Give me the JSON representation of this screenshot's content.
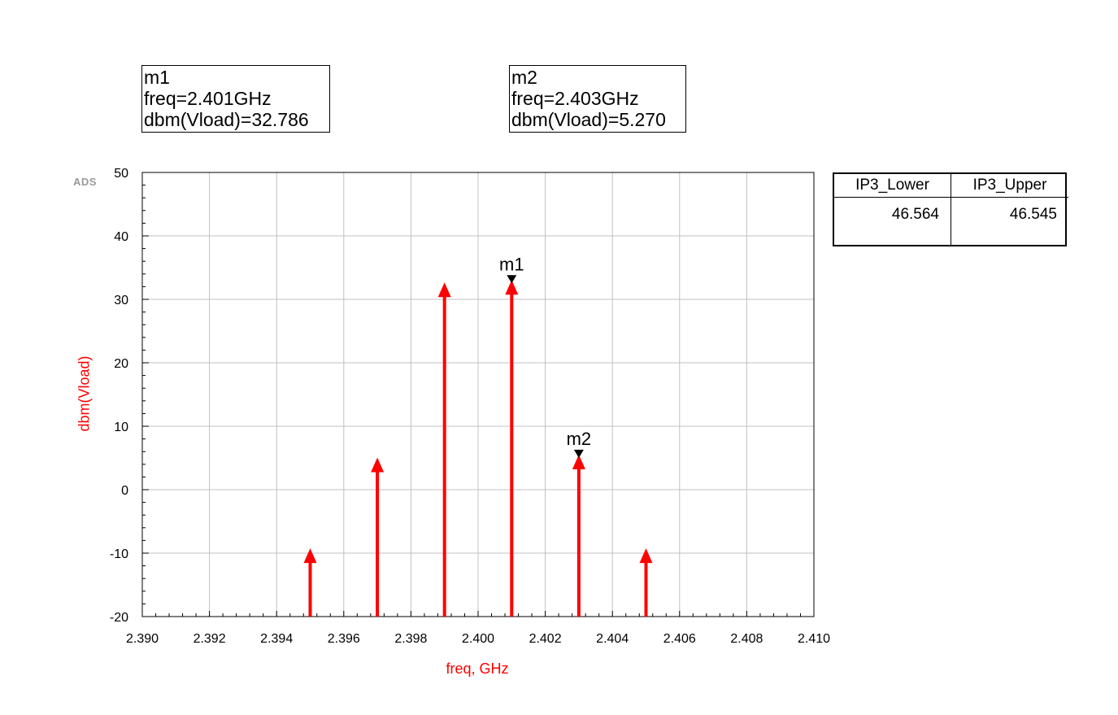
{
  "markers": {
    "m1": {
      "name": "m1",
      "freq_line": "freq=2.401GHz",
      "dbm_line": "dbm(Vload)=32.786",
      "x": 2.401,
      "y": 32.786
    },
    "m2": {
      "name": "m2",
      "freq_line": "freq=2.403GHz",
      "dbm_line": "dbm(Vload)=5.270",
      "x": 2.403,
      "y": 5.27
    }
  },
  "watermark": "ADS",
  "ip3_table": {
    "headers": [
      "IP3_Lower",
      "IP3_Upper"
    ],
    "values": [
      "46.564",
      "46.545"
    ]
  },
  "colors": {
    "series": "#ff0000",
    "grid": "#c0c0c0",
    "marker": "#000000"
  },
  "chart_data": {
    "type": "bar",
    "xlabel": "freq, GHz",
    "ylabel": "dbm(Vload)",
    "xlim": [
      2.39,
      2.41
    ],
    "ylim": [
      -20,
      50
    ],
    "xticks": [
      "2.390",
      "2.392",
      "2.394",
      "2.396",
      "2.398",
      "2.400",
      "2.402",
      "2.404",
      "2.406",
      "2.408",
      "2.410"
    ],
    "yticks": [
      "50",
      "40",
      "30",
      "20",
      "10",
      "0",
      "-10",
      "-20"
    ],
    "grid": true,
    "x": [
      2.395,
      2.397,
      2.399,
      2.401,
      2.403,
      2.405
    ],
    "values": [
      -9.5,
      4.8,
      32.4,
      32.786,
      5.27,
      -9.5
    ]
  }
}
